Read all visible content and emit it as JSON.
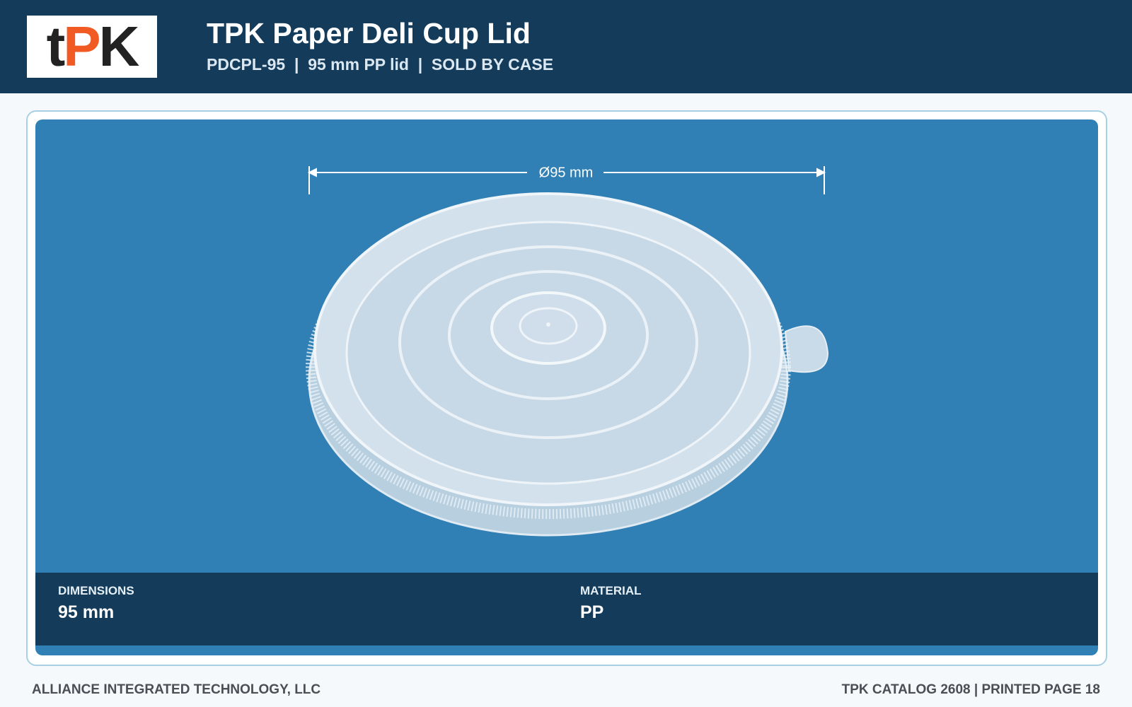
{
  "header": {
    "logo": [
      "t",
      "P",
      "K"
    ],
    "title": "TPK Paper Deli Cup Lid",
    "subtitle": "PDCPL-95  |  95 mm PP lid  |  SOLD BY CASE"
  },
  "product": {
    "dimension_label": "Ø95 mm"
  },
  "specs": [
    {
      "label": "DIMENSIONS",
      "value": "95 mm"
    },
    {
      "label": "MATERIAL",
      "value": "PP"
    }
  ],
  "footer": {
    "left": "ALLIANCE INTEGRATED TECHNOLOGY, LLC",
    "right": "TPK CATALOG 2608 | PRINTED PAGE 18"
  }
}
